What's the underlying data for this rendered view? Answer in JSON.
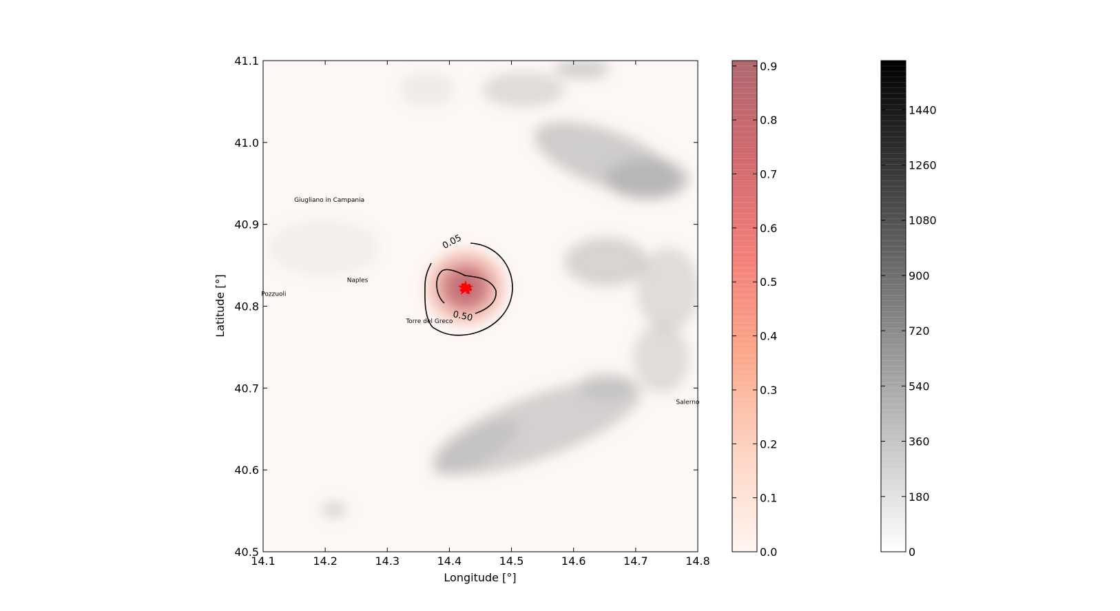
{
  "map": {
    "xlabel": "Longitude [°]",
    "ylabel": "Latitude [°]",
    "xlim": [
      14.1,
      14.8
    ],
    "ylim": [
      40.5,
      41.1
    ],
    "xticks": [
      "14.1",
      "14.2",
      "14.3",
      "14.4",
      "14.5",
      "14.6",
      "14.7",
      "14.8"
    ],
    "yticks": [
      "40.5",
      "40.6",
      "40.7",
      "40.8",
      "40.9",
      "41.0",
      "41.1"
    ],
    "cities": [
      {
        "name": "Giugliano in Campania",
        "lon": 14.15,
        "lat": 40.93
      },
      {
        "name": "Naples",
        "lon": 14.235,
        "lat": 40.832
      },
      {
        "name": "Pozzuoli",
        "lon": 14.097,
        "lat": 40.815
      },
      {
        "name": "Torre del Greco",
        "lon": 14.33,
        "lat": 40.782
      },
      {
        "name": "Salerno",
        "lon": 14.765,
        "lat": 40.683
      }
    ],
    "contours": [
      {
        "label": "0.05",
        "label_lon": 14.392,
        "label_lat": 40.87
      },
      {
        "label": "0.50",
        "label_lon": 14.405,
        "label_lat": 40.787
      }
    ],
    "vent": {
      "lon": 14.426,
      "lat": 40.822,
      "color": "#ff0000",
      "marker": "star"
    }
  },
  "probability_colorbar": {
    "min": 0.0,
    "max": 0.91,
    "ticks": [
      "0.0",
      "0.1",
      "0.2",
      "0.3",
      "0.4",
      "0.5",
      "0.6",
      "0.7",
      "0.8",
      "0.9"
    ],
    "color_low": "#fff5f0",
    "color_high": "#b06870"
  },
  "elevation_colorbar": {
    "min": 0,
    "max": 1600,
    "ticks": [
      "0",
      "180",
      "360",
      "540",
      "720",
      "900",
      "1080",
      "1260",
      "1440"
    ],
    "color_low": "#ffffff",
    "color_high": "#000000"
  }
}
